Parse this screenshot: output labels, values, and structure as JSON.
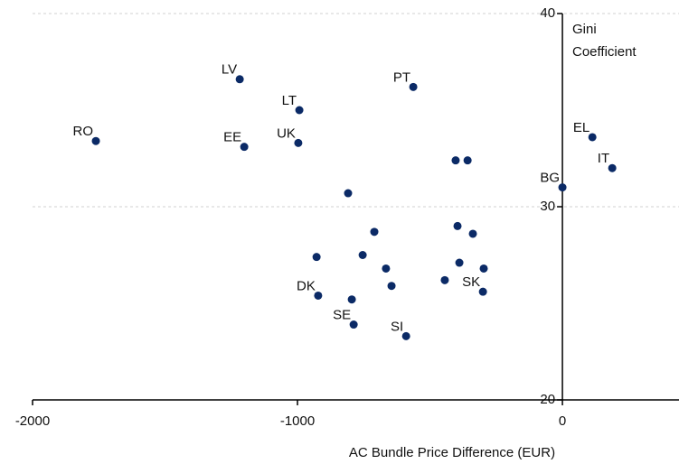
{
  "chart_data": {
    "type": "scatter",
    "xlabel": "AC Bundle Price Difference (EUR)",
    "ylabel": [
      "Gini",
      "Coefficient"
    ],
    "xlim": [
      -2000,
      440
    ],
    "ylim": [
      20,
      40
    ],
    "xticks": [
      -2000,
      -1000,
      0
    ],
    "yticks": [
      20,
      30,
      40
    ],
    "grid": true,
    "color": "#0b2a66",
    "x": [
      -1218,
      -563,
      -993,
      -1761,
      -1201,
      -997,
      113,
      188,
      0,
      -403,
      -358,
      -809,
      -396,
      -338,
      -710,
      -928,
      -754,
      -666,
      -389,
      -297,
      -645,
      -444,
      -922,
      -795,
      -300,
      -788,
      -590
    ],
    "y": [
      36.6,
      36.2,
      35.0,
      33.4,
      33.1,
      33.3,
      33.6,
      32.0,
      31.0,
      32.4,
      32.4,
      30.7,
      29.0,
      28.6,
      28.7,
      27.4,
      27.5,
      26.8,
      27.1,
      26.8,
      25.9,
      26.2,
      25.4,
      25.2,
      25.6,
      23.9,
      23.3
    ],
    "labels": [
      "LV",
      "PT",
      "LT",
      "RO",
      "EE",
      "UK",
      "EL",
      "IT",
      "BG",
      null,
      null,
      null,
      null,
      null,
      null,
      null,
      null,
      null,
      null,
      null,
      null,
      null,
      "DK",
      null,
      "SK",
      "SE",
      "SI"
    ]
  }
}
